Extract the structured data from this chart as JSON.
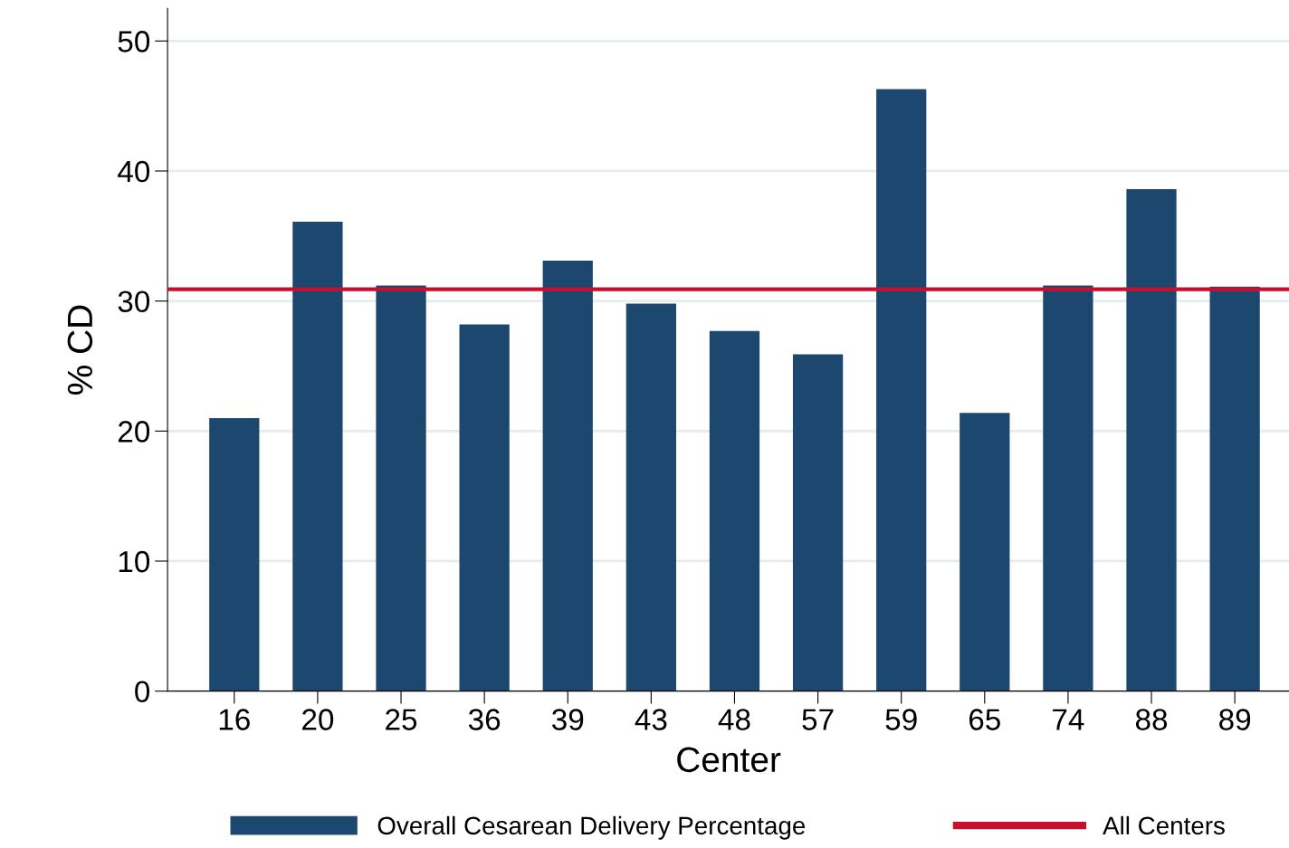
{
  "chart_data": {
    "type": "bar",
    "xlabel": "Center",
    "ylabel": "% CD",
    "categories": [
      "16",
      "20",
      "25",
      "36",
      "39",
      "43",
      "48",
      "57",
      "59",
      "65",
      "74",
      "88",
      "89"
    ],
    "series": [
      {
        "name": "Overall Cesarean Delivery Percentage",
        "color": "#1c476f",
        "values": [
          21.0,
          36.1,
          31.2,
          28.2,
          33.1,
          29.8,
          27.7,
          25.9,
          46.3,
          21.4,
          31.2,
          38.6,
          31.1
        ]
      }
    ],
    "ref_lines": [
      {
        "axis": "y",
        "value": 30.9,
        "label": "All Centers",
        "color": "#c8102e",
        "line_style": "solid"
      }
    ],
    "ylim": [
      0,
      52.5
    ],
    "yticks": [
      0,
      10,
      20,
      30,
      40,
      50
    ],
    "grid": "y",
    "legend": "bottom"
  }
}
